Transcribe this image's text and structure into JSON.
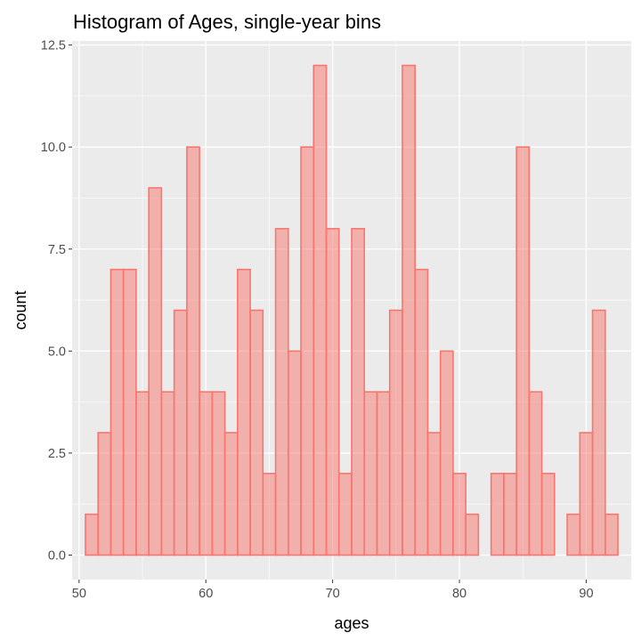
{
  "chart_data": {
    "type": "bar",
    "title": "Histogram of Ages, single-year bins",
    "xlabel": "ages",
    "ylabel": "count",
    "binwidth": 1,
    "x": [
      51,
      52,
      53,
      54,
      55,
      56,
      57,
      58,
      59,
      60,
      61,
      62,
      63,
      64,
      65,
      66,
      67,
      68,
      69,
      70,
      71,
      72,
      73,
      74,
      75,
      76,
      77,
      78,
      79,
      80,
      81,
      82,
      83,
      84,
      85,
      86,
      87,
      88,
      89,
      90,
      91,
      92
    ],
    "values": [
      1,
      3,
      7,
      7,
      4,
      9,
      4,
      6,
      10,
      4,
      4,
      3,
      7,
      6,
      2,
      8,
      5,
      10,
      12,
      8,
      2,
      8,
      4,
      4,
      6,
      12,
      7,
      3,
      5,
      2,
      1,
      0,
      2,
      2,
      10,
      4,
      2,
      0,
      1,
      3,
      6,
      1
    ],
    "xlim": [
      49.45,
      93.55
    ],
    "ylim": [
      -0.6,
      12.6
    ],
    "xticks": [
      50,
      60,
      70,
      80,
      90
    ],
    "xtick_labels": [
      "50",
      "60",
      "70",
      "80",
      "90"
    ],
    "yticks": [
      0,
      2.5,
      5,
      7.5,
      10,
      12.5
    ],
    "ytick_labels": [
      "0.0",
      "2.5",
      "5.0",
      "7.5",
      "10.0",
      "12.5"
    ],
    "grid": true,
    "colors": {
      "bar_fill": "#f8766d",
      "bar_fill_opacity": 0.5,
      "bar_outline": "#f8766d",
      "panel_background": "#ebebeb"
    }
  }
}
